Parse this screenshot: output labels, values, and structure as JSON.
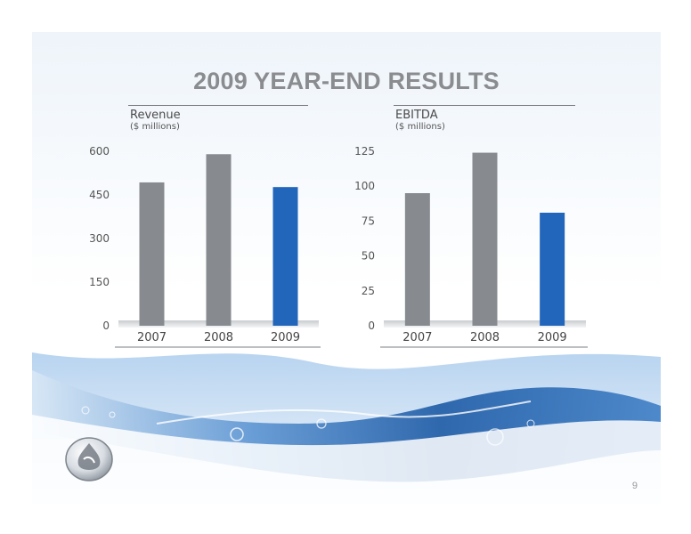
{
  "slide": {
    "title": "2009 YEAR-END RESULTS",
    "page_number": "9"
  },
  "colors": {
    "title_gray": "#8a8c8f",
    "bar_gray": "#878a8f",
    "bar_blue": "#2266bb",
    "accent_water": "#1f5fa8"
  },
  "logo_icon": "water-drop-logo-icon",
  "chart_data": [
    {
      "type": "bar",
      "title": "Revenue",
      "subtitle": "($ millions)",
      "categories": [
        "2007",
        "2008",
        "2009"
      ],
      "values": [
        493,
        590,
        477
      ],
      "bar_colors": [
        "#878a8f",
        "#878a8f",
        "#2266bb"
      ],
      "yticks": [
        "0",
        "150",
        "300",
        "450",
        "600"
      ],
      "ylim": [
        0,
        600
      ],
      "grid": false,
      "legend": "none"
    },
    {
      "type": "bar",
      "title": "EBITDA",
      "subtitle": "($ millions)",
      "categories": [
        "2007",
        "2008",
        "2009"
      ],
      "values": [
        95,
        124,
        81
      ],
      "bar_colors": [
        "#878a8f",
        "#878a8f",
        "#2266bb"
      ],
      "yticks": [
        "0",
        "25",
        "50",
        "75",
        "100",
        "125"
      ],
      "ylim": [
        0,
        125
      ],
      "grid": false,
      "legend": "none"
    }
  ]
}
